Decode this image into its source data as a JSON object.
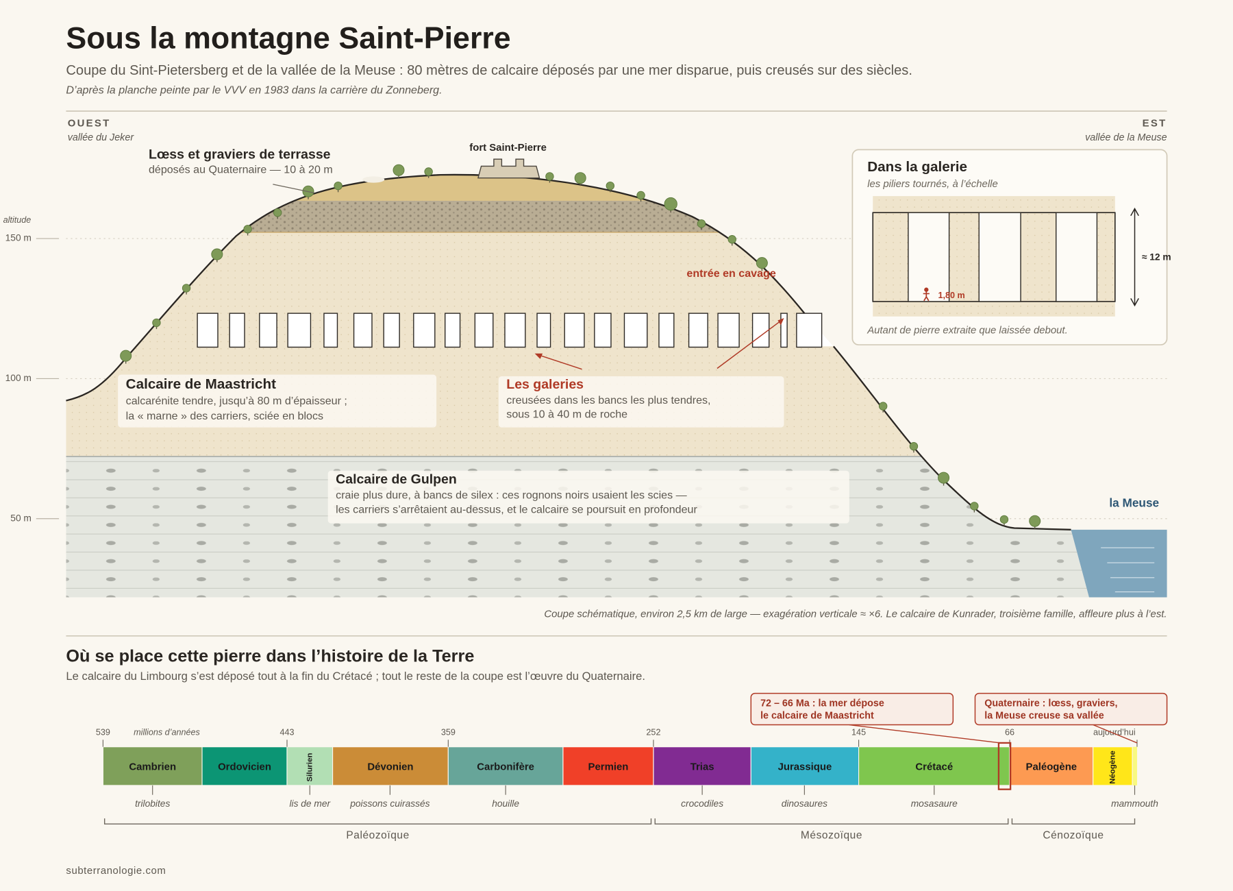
{
  "header": {
    "title": "Sous la montagne Saint-Pierre",
    "subtitle": "Coupe du Sint-Pietersberg et de la vallée de la Meuse : 80 mètres de calcaire déposés par une mer disparue, puis creusés sur des siècles.",
    "source": "D’après la planche peinte par le VVV en 1983 dans la carrière du Zonneberg."
  },
  "section": {
    "west": {
      "label": "OUEST",
      "place": "vallée du Jeker"
    },
    "east": {
      "label": "EST",
      "place": "vallée de la Meuse"
    },
    "altitude": {
      "label": "altitude",
      "ticks": [
        "150 m",
        "100 m",
        "50 m"
      ]
    },
    "loess": {
      "title": "Lœss et graviers de terrasse",
      "lines": [
        "déposés au Quaternaire — 10 à 20 m"
      ]
    },
    "maastricht": {
      "title": "Calcaire de Maastricht",
      "lines": [
        "calcarénite tendre, jusqu’à 80 m d’épaisseur ;",
        "la « marne » des carriers, sciée en blocs"
      ]
    },
    "galleries": {
      "title": "Les galeries",
      "lines": [
        "creusées dans les bancs les plus tendres,",
        "sous 10 à 40 m de roche"
      ]
    },
    "gulpen": {
      "title": "Calcaire de Gulpen",
      "lines": [
        "craie plus dure, à bancs de silex : ces rognons noirs usaient les scies —",
        "les carriers s’arrêtaient au-dessus, et le calcaire se poursuit en profondeur"
      ]
    },
    "fort": "fort Saint-Pierre",
    "entrance": "entrée en cavage",
    "river": "la Meuse",
    "caption": "Coupe schématique, environ 2,5 km de large — exagération verticale ≈ ×6. Le calcaire de Kunrader, troisième famille, affleure plus à l’est."
  },
  "inset": {
    "title": "Dans la galerie",
    "subtitle": "les piliers tournés, à l’échelle",
    "height": "≈ 12 m",
    "person": "1,80 m",
    "caption": "Autant de pierre extraite que laissée debout."
  },
  "history": {
    "title": "Où se place cette pierre dans l’histoire de la Terre",
    "subtitle": "Le calcaire du Limbourg s’est déposé tout à la fin du Crétacé ; tout le reste de la coupe est l’œuvre du Quaternaire.",
    "unit": "millions d’années",
    "ticks": [
      "539",
      "443",
      "359",
      "252",
      "145",
      "66",
      "aujourd’hui"
    ],
    "periods": [
      "Cambrien",
      "Ordovicien",
      "Silurien",
      "Dévonien",
      "Carbonifère",
      "Permien",
      "Trias",
      "Jurassique",
      "Crétacé",
      "Paléogène",
      "Néogène"
    ],
    "fossils": [
      "trilobites",
      "lis de mer",
      "poissons cuirassés",
      "houille",
      "crocodiles",
      "dinosaures",
      "mosasaure",
      "mammouth"
    ],
    "eras": [
      "Paléozoïque",
      "Mésozoïque",
      "Cénozoïque"
    ],
    "callouts": [
      {
        "lines": [
          "72 – 66 Ma : la mer dépose",
          "le calcaire de Maastricht"
        ]
      },
      {
        "lines": [
          "Quaternaire : lœss, graviers,",
          "la Meuse creuse sa vallée"
        ]
      }
    ]
  },
  "footer": "subterranologie.com"
}
